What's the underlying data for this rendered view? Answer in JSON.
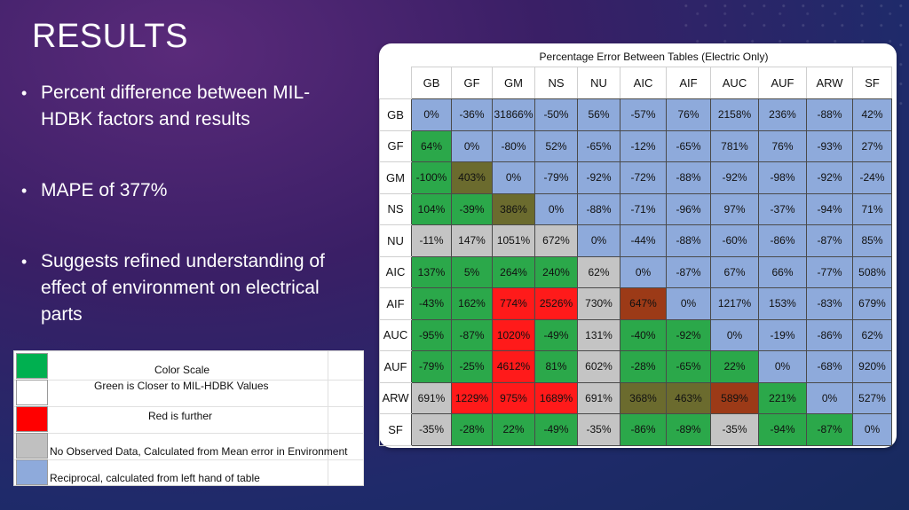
{
  "slide": {
    "title": "RESULTS",
    "bullets": [
      "Percent difference between MIL-HDBK factors and results",
      "MAPE of 377%",
      "Suggests refined understanding of effect of environment on electrical parts"
    ]
  },
  "legend": {
    "items": [
      {
        "color": "#00b050",
        "label": "Color Scale"
      },
      {
        "color": "#ffffff",
        "label": "Green is Closer to MIL-HDBK Values"
      },
      {
        "color": "#ff0000",
        "label": "Red is further"
      },
      {
        "color": "#c0c0c0",
        "label": "No Observed Data, Calculated from Mean error in Environment"
      },
      {
        "color": "#8eaadb",
        "label": "Reciprocal, calculated from left hand of table"
      }
    ]
  },
  "table": {
    "title": "Percentage Error Between Tables (Electric Only)",
    "columns": [
      "GB",
      "GF",
      "GM",
      "NS",
      "NU",
      "AIC",
      "AIF",
      "AUC",
      "AUF",
      "ARW",
      "SF"
    ],
    "rows": [
      {
        "label": "GB",
        "cells": [
          "0%",
          "-36%",
          "31866%",
          "-50%",
          "56%",
          "-57%",
          "76%",
          "2158%",
          "236%",
          "-88%",
          "42%"
        ]
      },
      {
        "label": "GF",
        "cells": [
          "64%",
          "0%",
          "-80%",
          "52%",
          "-65%",
          "-12%",
          "-65%",
          "781%",
          "76%",
          "-93%",
          "27%"
        ]
      },
      {
        "label": "GM",
        "cells": [
          "-100%",
          "403%",
          "0%",
          "-79%",
          "-92%",
          "-72%",
          "-88%",
          "-92%",
          "-98%",
          "-92%",
          "-24%"
        ]
      },
      {
        "label": "NS",
        "cells": [
          "104%",
          "-39%",
          "386%",
          "0%",
          "-88%",
          "-71%",
          "-96%",
          "97%",
          "-37%",
          "-94%",
          "71%"
        ]
      },
      {
        "label": "NU",
        "cells": [
          "-11%",
          "147%",
          "1051%",
          "672%",
          "0%",
          "-44%",
          "-88%",
          "-60%",
          "-86%",
          "-87%",
          "85%"
        ]
      },
      {
        "label": "AIC",
        "cells": [
          "137%",
          "5%",
          "264%",
          "240%",
          "62%",
          "0%",
          "-87%",
          "67%",
          "66%",
          "-77%",
          "508%"
        ]
      },
      {
        "label": "AIF",
        "cells": [
          "-43%",
          "162%",
          "774%",
          "2526%",
          "730%",
          "647%",
          "0%",
          "1217%",
          "153%",
          "-83%",
          "679%"
        ]
      },
      {
        "label": "AUC",
        "cells": [
          "-95%",
          "-87%",
          "1020%",
          "-49%",
          "131%",
          "-40%",
          "-92%",
          "0%",
          "-19%",
          "-86%",
          "62%"
        ]
      },
      {
        "label": "AUF",
        "cells": [
          "-79%",
          "-25%",
          "4612%",
          "81%",
          "602%",
          "-28%",
          "-65%",
          "22%",
          "0%",
          "-68%",
          "920%"
        ]
      },
      {
        "label": "ARW",
        "cells": [
          "691%",
          "1229%",
          "975%",
          "1689%",
          "691%",
          "368%",
          "463%",
          "589%",
          "221%",
          "0%",
          "527%"
        ]
      },
      {
        "label": "SF",
        "cells": [
          "-35%",
          "-28%",
          "22%",
          "-49%",
          "-35%",
          "-86%",
          "-89%",
          "-35%",
          "-94%",
          "-87%",
          "0%"
        ]
      }
    ],
    "cell_colors": [
      [
        "B",
        "B",
        "B",
        "B",
        "B",
        "B",
        "B",
        "B",
        "B",
        "B",
        "B"
      ],
      [
        "G",
        "B",
        "B",
        "B",
        "B",
        "B",
        "B",
        "B",
        "B",
        "B",
        "B"
      ],
      [
        "G",
        "O",
        "B",
        "B",
        "B",
        "B",
        "B",
        "B",
        "B",
        "B",
        "B"
      ],
      [
        "G",
        "G",
        "O",
        "B",
        "B",
        "B",
        "B",
        "B",
        "B",
        "B",
        "B"
      ],
      [
        "S",
        "S",
        "S",
        "S",
        "B",
        "B",
        "B",
        "B",
        "B",
        "B",
        "B"
      ],
      [
        "G",
        "G",
        "G",
        "G",
        "S",
        "B",
        "B",
        "B",
        "B",
        "B",
        "B"
      ],
      [
        "G",
        "G",
        "R",
        "R",
        "S",
        "BR",
        "B",
        "B",
        "B",
        "B",
        "B"
      ],
      [
        "G",
        "G",
        "R",
        "G",
        "S",
        "G",
        "G",
        "B",
        "B",
        "B",
        "B"
      ],
      [
        "G",
        "G",
        "R",
        "G",
        "S",
        "G",
        "G",
        "G",
        "B",
        "B",
        "B"
      ],
      [
        "S",
        "R",
        "R",
        "R",
        "S",
        "O",
        "O",
        "BR",
        "G",
        "B",
        "B"
      ],
      [
        "S",
        "G",
        "G",
        "G",
        "S",
        "G",
        "G",
        "S",
        "G",
        "G",
        "B"
      ]
    ],
    "palette": {
      "B": "#8eaadb",
      "G": "#2ba84a",
      "S": "#c4c4c4",
      "R": "#ff1a1a",
      "O": "#6b6b2e",
      "BR": "#9c3a17"
    }
  }
}
